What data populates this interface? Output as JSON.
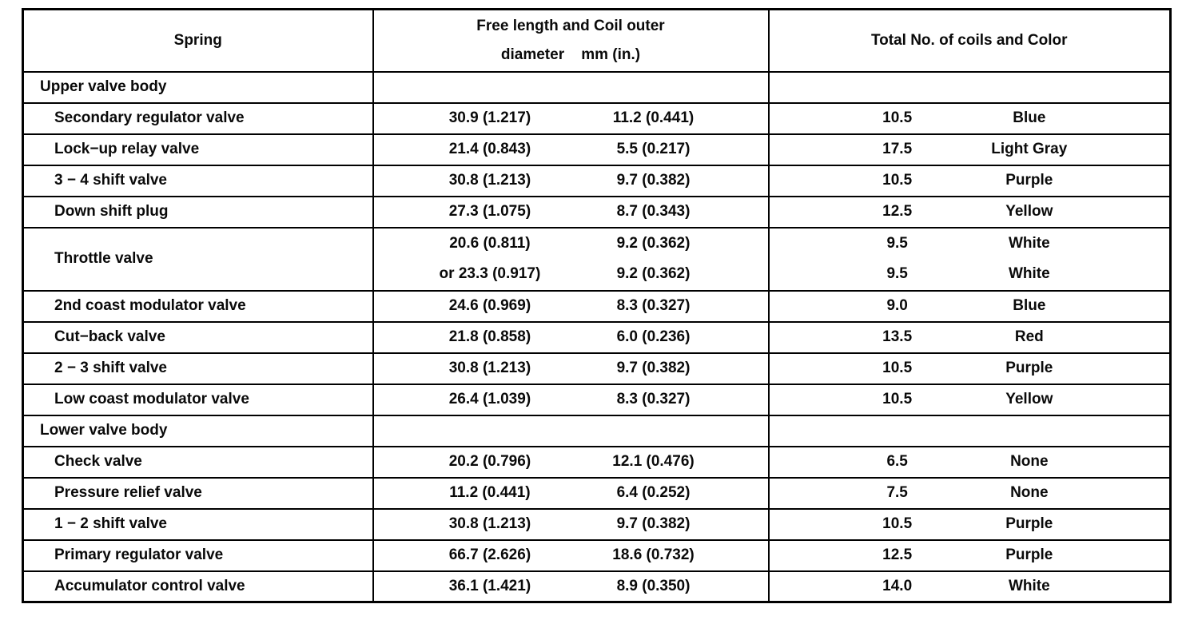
{
  "table": {
    "header": {
      "col1": "Spring",
      "col2_line1": "Free length and Coil outer",
      "col2_line2": "diameter    mm (in.)",
      "col3": "Total No. of coils and Color"
    },
    "rows": [
      {
        "kind": "section",
        "name": "Upper valve body"
      },
      {
        "kind": "item",
        "name": "Secondary regulator valve",
        "free_length": "30.9 (1.217)",
        "coil_diameter": "11.2 (0.441)",
        "coils": "10.5",
        "color": "Blue"
      },
      {
        "kind": "item",
        "name": "Lock−up relay valve",
        "free_length": "21.4 (0.843)",
        "coil_diameter": "5.5 (0.217)",
        "coils": "17.5",
        "color": "Light Gray"
      },
      {
        "kind": "item",
        "name": "3 − 4 shift valve",
        "free_length": "30.8 (1.213)",
        "coil_diameter": "9.7 (0.382)",
        "coils": "10.5",
        "color": "Purple"
      },
      {
        "kind": "item",
        "name": "Down shift plug",
        "free_length": "27.3 (1.075)",
        "coil_diameter": "8.7 (0.343)",
        "coils": "12.5",
        "color": "Yellow"
      },
      {
        "kind": "item-double",
        "name": "Throttle valve",
        "free_length": "20.6 (0.811)",
        "free_length_2": "or 23.3 (0.917)",
        "coil_diameter": "9.2 (0.362)",
        "coil_diameter_2": "9.2 (0.362)",
        "coils": "9.5",
        "coils_2": "9.5",
        "color": "White",
        "color_2": "White"
      },
      {
        "kind": "item",
        "name": "2nd coast modulator valve",
        "free_length": "24.6 (0.969)",
        "coil_diameter": "8.3 (0.327)",
        "coils": "9.0",
        "color": "Blue"
      },
      {
        "kind": "item",
        "name": "Cut−back valve",
        "free_length": "21.8 (0.858)",
        "coil_diameter": "6.0 (0.236)",
        "coils": "13.5",
        "color": "Red"
      },
      {
        "kind": "item",
        "name": "2 − 3 shift valve",
        "free_length": "30.8 (1.213)",
        "coil_diameter": "9.7 (0.382)",
        "coils": "10.5",
        "color": "Purple"
      },
      {
        "kind": "item",
        "name": "Low coast modulator valve",
        "free_length": "26.4 (1.039)",
        "coil_diameter": "8.3 (0.327)",
        "coils": "10.5",
        "color": "Yellow"
      },
      {
        "kind": "section",
        "name": "Lower valve body"
      },
      {
        "kind": "item",
        "name": "Check valve",
        "free_length": "20.2 (0.796)",
        "coil_diameter": "12.1 (0.476)",
        "coils": "6.5",
        "color": "None"
      },
      {
        "kind": "item",
        "name": "Pressure relief valve",
        "free_length": "11.2 (0.441)",
        "coil_diameter": "6.4 (0.252)",
        "coils": "7.5",
        "color": "None"
      },
      {
        "kind": "item",
        "name": "1 − 2 shift valve",
        "free_length": "30.8 (1.213)",
        "coil_diameter": "9.7 (0.382)",
        "coils": "10.5",
        "color": "Purple"
      },
      {
        "kind": "item",
        "name": "Primary regulator valve",
        "free_length": "66.7 (2.626)",
        "coil_diameter": "18.6 (0.732)",
        "coils": "12.5",
        "color": "Purple"
      },
      {
        "kind": "item",
        "name": "Accumulator control valve",
        "free_length": "36.1 (1.421)",
        "coil_diameter": "8.9 (0.350)",
        "coils": "14.0",
        "color": "White"
      }
    ],
    "colors": {
      "ink": "#0a0a0a",
      "paper": "#ffffff",
      "grid": "#000000"
    }
  }
}
